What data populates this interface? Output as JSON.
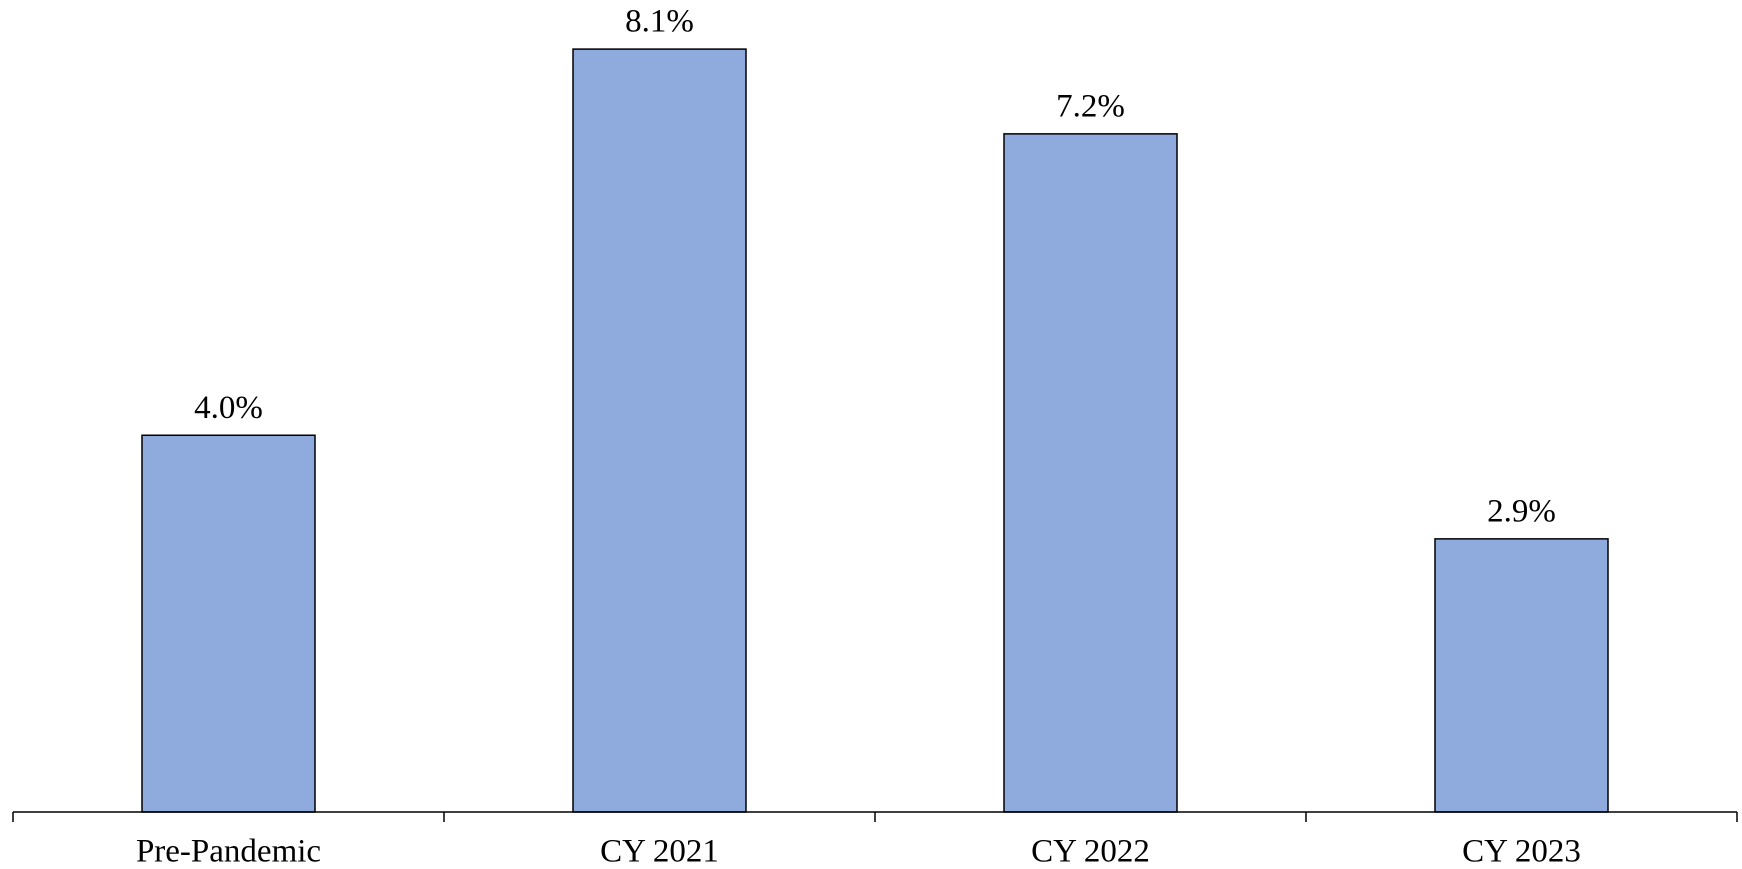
{
  "chart_data": {
    "type": "bar",
    "categories": [
      "Pre-Pandemic",
      "CY 2021",
      "CY 2022",
      "CY 2023"
    ],
    "values": [
      4.0,
      8.1,
      7.2,
      2.9
    ],
    "value_labels": [
      "4.0%",
      "8.1%",
      "7.2%",
      "2.9%"
    ],
    "color": "#8faadc",
    "ylim": [
      0,
      8.6
    ]
  }
}
